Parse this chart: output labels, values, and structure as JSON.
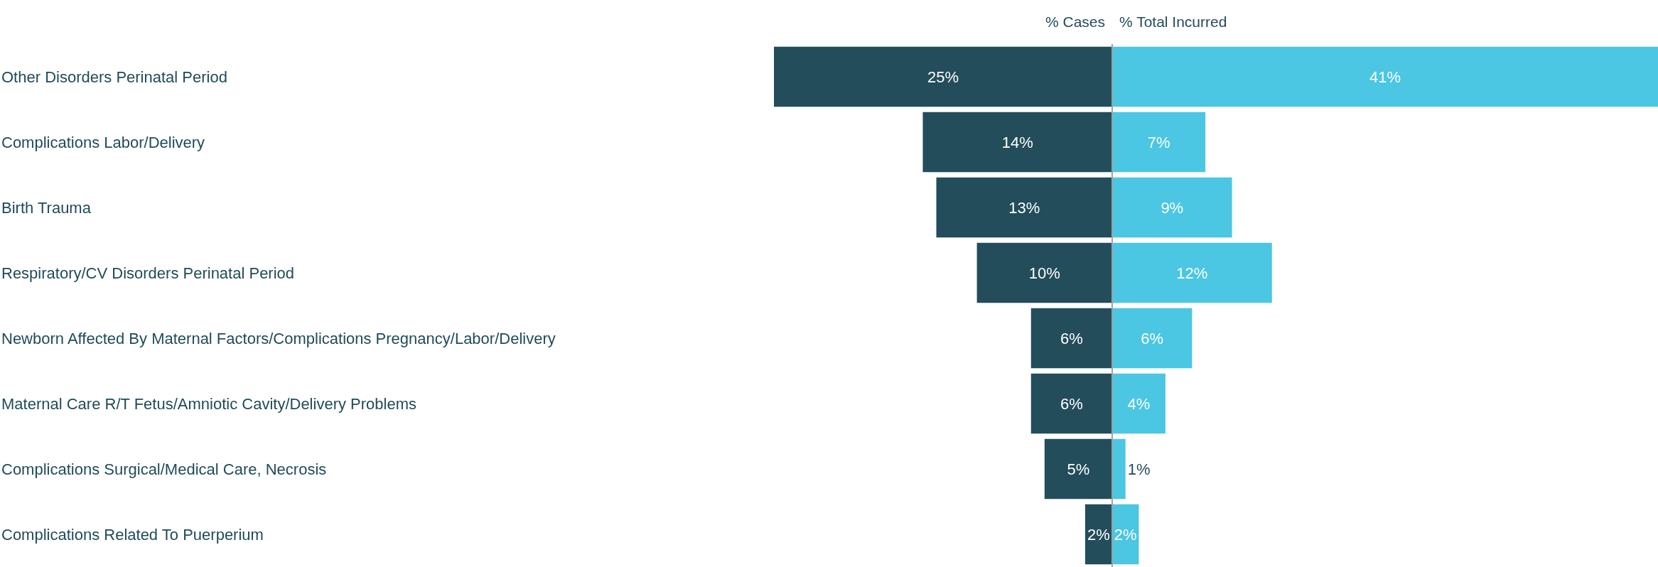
{
  "chart_data": [
    {
      "type": "bar",
      "orientation": "horizontal",
      "title": "% Cases",
      "categories": [
        "Other Disorders Perinatal Period",
        "Complications Labor/Delivery",
        "Birth Trauma",
        "Respiratory/CV Disorders Perinatal Period",
        "Newborn Affected By Maternal Factors/Complications Pregnancy/Labor/Delivery",
        "Maternal Care R/T Fetus/Amniotic Cavity/Delivery Problems",
        "Complications Surgical/Medical Care, Necrosis",
        "Complications Related To Puerperium"
      ],
      "values": [
        25,
        14,
        13,
        10,
        6,
        6,
        5,
        2
      ],
      "value_labels": [
        "25%",
        "14%",
        "13%",
        "10%",
        "6%",
        "6%",
        "5%",
        "2%"
      ],
      "color": "#234d5b",
      "xlim": [
        25,
        0
      ],
      "tick_labels": "y"
    },
    {
      "type": "bar",
      "orientation": "horizontal",
      "title": "% Total Incurred",
      "categories": [
        null,
        null,
        null,
        null,
        null,
        null,
        null,
        null
      ],
      "values": [
        41,
        7,
        9,
        12,
        6,
        4,
        1,
        2
      ],
      "value_labels": [
        "41%",
        "7%",
        "9%",
        "12%",
        "6%",
        "4%",
        "1%",
        "2%"
      ],
      "color": "#4bc6e3",
      "xlim": [
        0,
        41
      ]
    }
  ]
}
